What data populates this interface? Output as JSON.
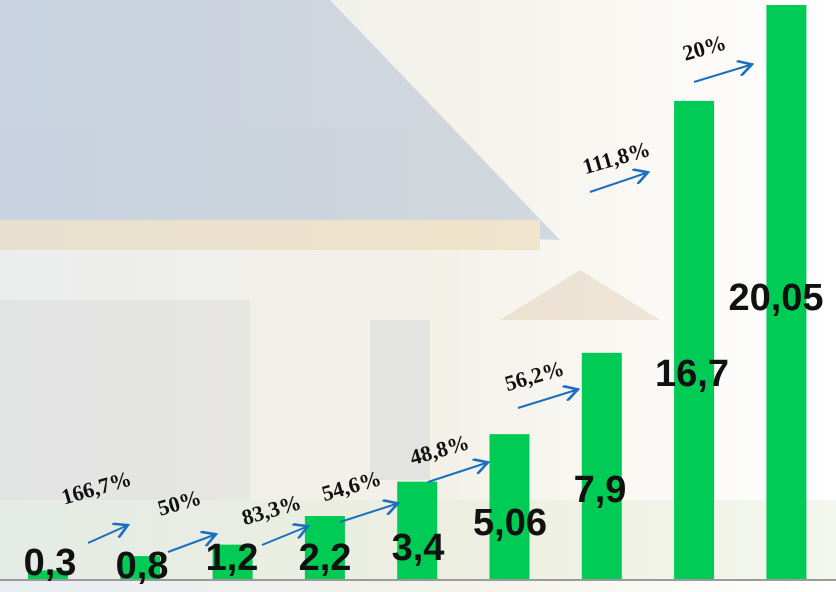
{
  "chart_data": {
    "type": "bar",
    "categories": [
      null,
      null,
      null,
      null,
      null,
      null,
      null,
      null,
      null
    ],
    "values": [
      0.3,
      0.8,
      1.2,
      2.2,
      3.4,
      5.06,
      7.9,
      16.7,
      20.05
    ],
    "value_labels": [
      "0,3",
      "0,8",
      "1,2",
      "2,2",
      "3,4",
      "5,06",
      "7,9",
      "16,7",
      "20,05"
    ],
    "color": "#00cc55",
    "annotations": [
      "166,7%",
      "50%",
      "83,3%",
      "54,6%",
      "48,8%",
      "56,2%",
      "111,8%",
      "20%"
    ],
    "arrow_color": "#1a6fc0"
  }
}
